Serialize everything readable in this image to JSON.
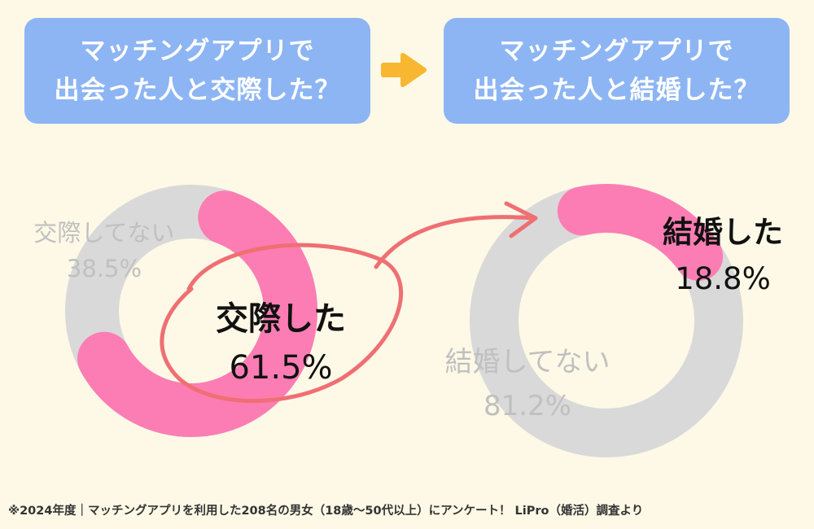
{
  "header": {
    "left": {
      "lines": [
        "マッチングアプリで",
        "出会った人と交際した？"
      ]
    },
    "right": {
      "lines": [
        "マッチングアプリで",
        "出会った人と結婚した？"
      ]
    }
  },
  "colors": {
    "box_bg": "#8db5f4",
    "arrow": "#f7b731",
    "pink": "#fc7db4",
    "gray": "#d9d9d9",
    "circle": "#ef6f73",
    "muted_text": "#c0c0c0",
    "background": "#fdf9e6"
  },
  "chart_data": [
    {
      "type": "pie",
      "slices": [
        {
          "label": "交際した",
          "value": 61.5,
          "display": "61.5%",
          "color": "#fc7db4"
        },
        {
          "label": "交際してない",
          "value": 38.5,
          "display": "38.5%",
          "color": "#d9d9d9"
        }
      ]
    },
    {
      "type": "pie",
      "slices": [
        {
          "label": "結婚した",
          "value": 18.8,
          "display": "18.8%",
          "color": "#fc7db4"
        },
        {
          "label": "結婚してない",
          "value": 81.2,
          "display": "81.2%",
          "color": "#d9d9d9"
        }
      ]
    }
  ],
  "footnote": "※2024年度｜マッチングアプリを利用した208名の男女（18歳～50代以上）にアンケート！ LiPro（婚活）調査より"
}
